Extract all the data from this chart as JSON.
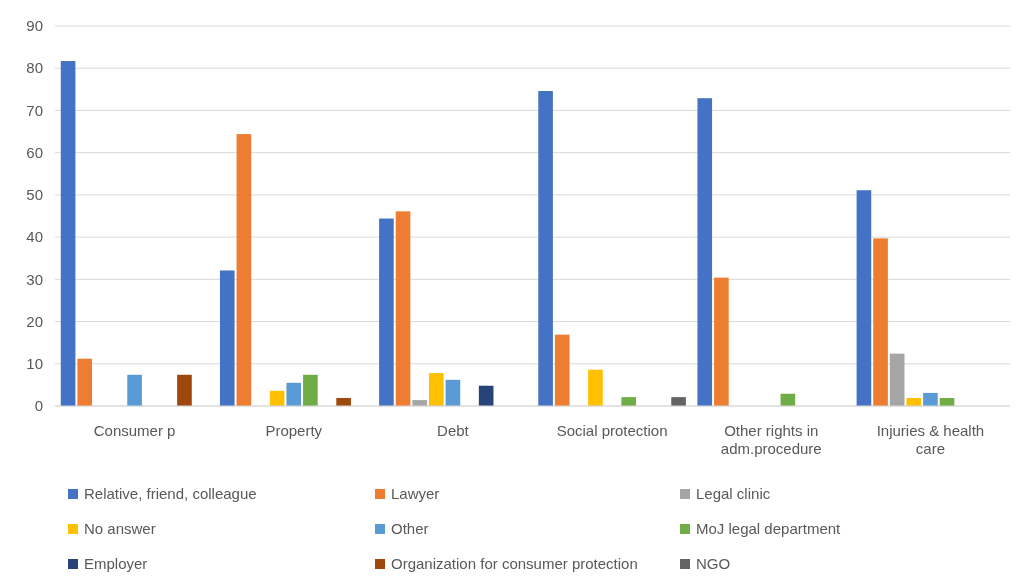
{
  "chart_data": {
    "type": "bar",
    "categories": [
      "Consumer p",
      "Property",
      "Debt",
      "Social protection",
      "Other rights in adm.procedure",
      "Injuries & health care"
    ],
    "ylim": [
      0,
      90
    ],
    "yticks": [
      0,
      10,
      20,
      30,
      40,
      50,
      60,
      70,
      80,
      90
    ],
    "grid": "y",
    "legend": "bottom",
    "series": [
      {
        "name": "Relative, friend, colleague",
        "color": "#4472c4",
        "values": [
          81.7,
          32.1,
          44.4,
          74.6,
          72.9,
          51.1
        ]
      },
      {
        "name": "Lawyer",
        "color": "#ed7d31",
        "values": [
          11.2,
          64.4,
          46.1,
          16.9,
          30.4,
          39.7
        ]
      },
      {
        "name": "Legal clinic",
        "color": "#a5a5a5",
        "values": [
          null,
          null,
          1.4,
          null,
          null,
          12.4
        ]
      },
      {
        "name": "No answer",
        "color": "#ffc000",
        "values": [
          null,
          3.6,
          7.8,
          8.6,
          null,
          1.9
        ]
      },
      {
        "name": "Other",
        "color": "#5b9bd5",
        "values": [
          7.4,
          5.5,
          6.2,
          null,
          null,
          3.1
        ]
      },
      {
        "name": "MoJ legal department",
        "color": "#70ad47",
        "values": [
          null,
          7.4,
          null,
          2.1,
          2.9,
          1.9
        ]
      },
      {
        "name": "Employer",
        "color": "#264478",
        "values": [
          null,
          null,
          4.8,
          null,
          null,
          null
        ]
      },
      {
        "name": "Organization for consumer protection",
        "color": "#9e480e",
        "values": [
          7.4,
          1.9,
          null,
          null,
          null,
          null
        ]
      },
      {
        "name": "NGO",
        "color": "#636363",
        "values": [
          null,
          null,
          null,
          2.1,
          null,
          null
        ]
      }
    ]
  }
}
